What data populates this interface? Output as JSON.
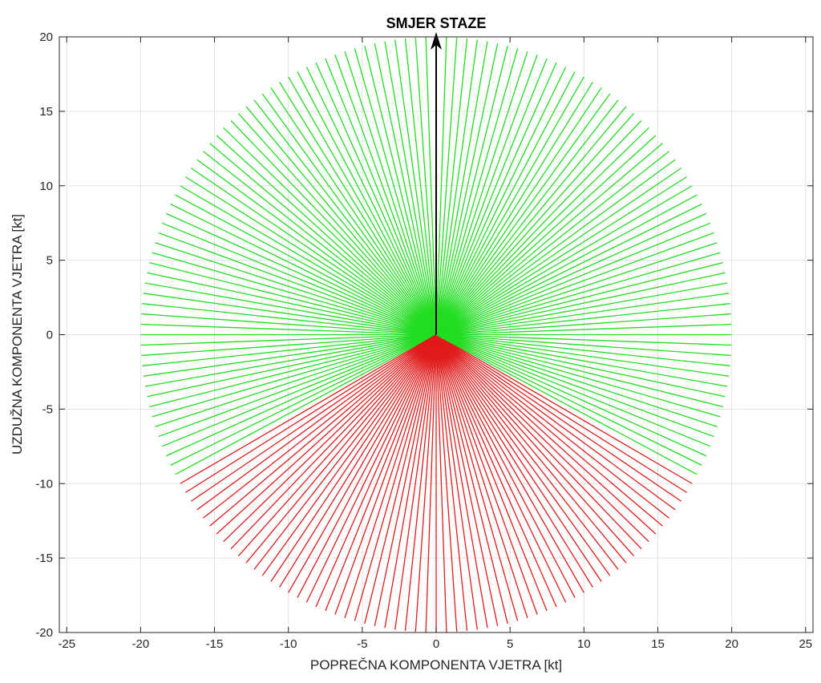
{
  "chart_data": {
    "type": "line",
    "title": "SMJER STAZE",
    "xlabel": "POPREČNA KOMPONENTA VJETRA [kt]",
    "ylabel": "UZDUŽNA KOMPONENTA VJETRA [kt]",
    "xlim": [
      -25.5,
      25.5
    ],
    "ylim": [
      -20,
      20
    ],
    "xticks": [
      "-25",
      "-20",
      "-15",
      "-10",
      "-5",
      "0",
      "5",
      "10",
      "15",
      "20",
      "25"
    ],
    "yticks": [
      "-20",
      "-15",
      "-10",
      "-5",
      "0",
      "5",
      "10",
      "15",
      "20"
    ],
    "grid": true,
    "box": true,
    "radial_lines": {
      "radius": 20,
      "angle_step_deg": 2,
      "red_sector_deg": [
        210,
        330
      ],
      "colors": {
        "inside_limits": "#22dd22",
        "outside_limits": "#e01b1b"
      }
    },
    "arrow": {
      "from": [
        0,
        0
      ],
      "to": [
        0,
        20
      ],
      "color": "#000000"
    }
  }
}
